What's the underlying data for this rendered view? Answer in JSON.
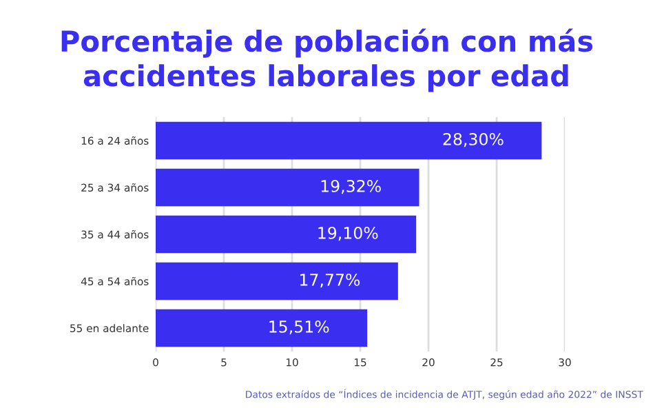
{
  "chart_data": {
    "type": "bar",
    "orientation": "horizontal",
    "title": "Porcentaje de población con más\naccidentes laborales por edad",
    "categories": [
      "16 a 24 años",
      "25 a 34 años",
      "35 a 44 años",
      "45 a 54 años",
      "55 en adelante"
    ],
    "values": [
      28.3,
      19.32,
      19.1,
      17.77,
      15.51
    ],
    "value_labels": [
      "28,30%",
      "19,32%",
      "19,10%",
      "17,77%",
      "15,51%"
    ],
    "color": "#3a2ff0",
    "xlim": [
      0,
      30
    ],
    "xticks": [
      0,
      5,
      10,
      15,
      20,
      25,
      30
    ],
    "grid": "x",
    "annotations": [
      "Datos extraídos de “Índices de incidencia de ATJT, según edad año 2022” de INSST"
    ]
  }
}
